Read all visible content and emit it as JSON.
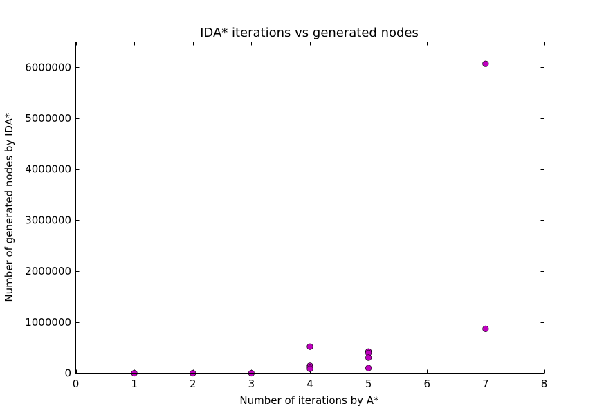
{
  "chart_data": {
    "type": "scatter",
    "title": "IDA* iterations vs generated nodes",
    "xlabel": "Number of iterations by A*",
    "ylabel": "Number of generated nodes by IDA*",
    "xlim": [
      0,
      8
    ],
    "ylim": [
      0,
      6500000
    ],
    "xticks": [
      0,
      1,
      2,
      3,
      4,
      5,
      6,
      7,
      8
    ],
    "xtick_labels": [
      "0",
      "1",
      "2",
      "3",
      "4",
      "5",
      "6",
      "7",
      "8"
    ],
    "yticks": [
      0,
      1000000,
      2000000,
      3000000,
      4000000,
      5000000,
      6000000
    ],
    "ytick_labels": [
      "0",
      "1000000",
      "2000000",
      "3000000",
      "4000000",
      "5000000",
      "6000000"
    ],
    "grid": false,
    "marker_color": "#bf00bf",
    "marker_edge_color": "#000000",
    "series": [
      {
        "points": [
          {
            "x": 1,
            "y": 0
          },
          {
            "x": 2,
            "y": 0
          },
          {
            "x": 3,
            "y": 0
          },
          {
            "x": 4,
            "y": 520000
          },
          {
            "x": 4,
            "y": 145000
          },
          {
            "x": 4,
            "y": 115000
          },
          {
            "x": 4,
            "y": 85000
          },
          {
            "x": 5,
            "y": 425000
          },
          {
            "x": 5,
            "y": 395000
          },
          {
            "x": 5,
            "y": 305000
          },
          {
            "x": 5,
            "y": 100000
          },
          {
            "x": 7,
            "y": 6070000
          },
          {
            "x": 7,
            "y": 870000
          }
        ]
      }
    ]
  }
}
